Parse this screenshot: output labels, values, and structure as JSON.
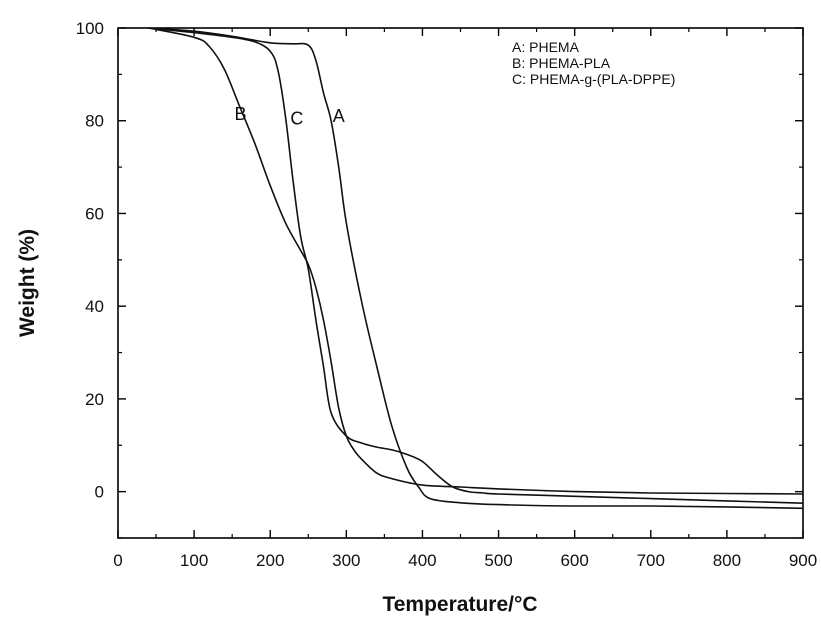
{
  "chart_data": {
    "type": "line",
    "xlabel": "Temperature/°C",
    "ylabel": "Weight (%)",
    "xlim": [
      0,
      900
    ],
    "ylim": [
      -10,
      100
    ],
    "xticks": [
      0,
      100,
      200,
      300,
      400,
      500,
      600,
      700,
      800,
      900
    ],
    "yticks": [
      0,
      20,
      40,
      60,
      80,
      100
    ],
    "grid": false,
    "legend_position": "top-right",
    "legend_entries": [
      "A: PHEMA",
      "B: PHEMA-PLA",
      "C: PHEMA-g-(PLA-DPPE)"
    ],
    "series": [
      {
        "name": "A",
        "x": [
          40,
          100,
          150,
          200,
          230,
          250,
          260,
          270,
          280,
          290,
          300,
          320,
          340,
          360,
          380,
          395,
          410,
          450,
          500,
          600,
          700,
          800,
          900
        ],
        "y": [
          100,
          99.3,
          98.2,
          96.8,
          96.6,
          96.3,
          93,
          86,
          80,
          70,
          58,
          41,
          27,
          14,
          5,
          1,
          -1.5,
          -2.4,
          -2.8,
          -3.1,
          -3.1,
          -3.3,
          -3.6
        ],
        "label_position": {
          "x": 290,
          "y": 81
        }
      },
      {
        "name": "B",
        "x": [
          40,
          100,
          120,
          140,
          160,
          180,
          200,
          220,
          240,
          250,
          260,
          270,
          280,
          290,
          300,
          310,
          320,
          340,
          360,
          400,
          450,
          500,
          600,
          700,
          800,
          900
        ],
        "y": [
          100,
          98,
          96,
          91,
          83,
          75,
          66,
          58,
          52,
          49,
          44,
          37,
          28,
          18,
          12,
          9,
          7,
          4,
          2.8,
          1.4,
          1,
          0.6,
          0,
          -0.3,
          -0.4,
          -0.5
        ],
        "label_position": {
          "x": 161,
          "y": 81.5
        }
      },
      {
        "name": "C",
        "x": [
          40,
          100,
          150,
          180,
          200,
          210,
          220,
          230,
          240,
          250,
          260,
          270,
          280,
          300,
          320,
          340,
          360,
          380,
          400,
          420,
          440,
          460,
          480,
          500,
          600,
          700,
          800,
          900
        ],
        "y": [
          100,
          99,
          98,
          97,
          95,
          91,
          81,
          67,
          55,
          48,
          37,
          27,
          17,
          12,
          10.5,
          9.6,
          9,
          8,
          6.5,
          3.5,
          1,
          0,
          -0.3,
          -0.5,
          -1,
          -1.5,
          -2,
          -2.5
        ],
        "label_position": {
          "x": 235,
          "y": 80.5
        }
      }
    ]
  }
}
